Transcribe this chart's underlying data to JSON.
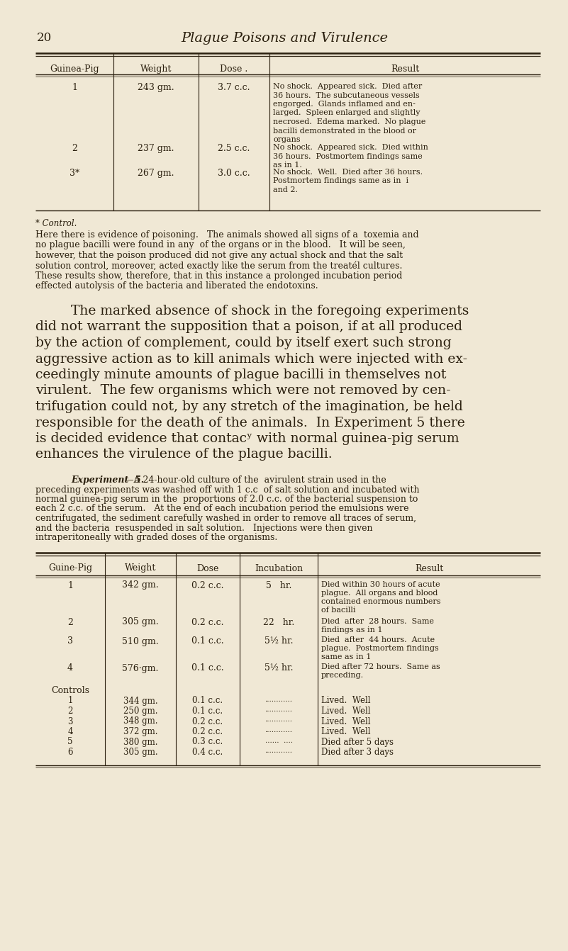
{
  "bg_color": "#f0e8d5",
  "text_color": "#2a1f0e",
  "page_number": "20",
  "page_title": "Plague Poisons and Virulence",
  "table1_headers": [
    "Guinea-Pig",
    "Weight",
    "Dose .",
    "Result"
  ],
  "table1_rows": [
    [
      "1",
      "243 gm.",
      "3.7 c.c.",
      "No shock.  Appeared sick.  Died after\n36 hours.  The subcutaneous vessels\nengorged.  Glands inflamed and en-\nlarged.  Spleen enlarged and slightly\nnecrosed.  Edema marked.  No plague\nbacilli demonstrated in the blood or\norgans"
    ],
    [
      "2",
      "237 gm.",
      "2.5 c.c.",
      "No shock.  Appeared sick.  Died within\n36 hours.  Postmortem findings same\nas in 1."
    ],
    [
      "3*",
      "267 gm.",
      "3.0 c.c.",
      "No shock.  Well.  Died after 36 hours.\nPostmortem findings same as in  i\nand 2."
    ]
  ],
  "table1_footnote": "* Control.",
  "body_text_small_lines": [
    "Here there is evidence of poisoning.   The animals showed all signs of a  toxemia and",
    "no plague bacilli were found in any  of the organs or in the blood.   It will be seen,",
    "however, that the poison produced did not give any actual shock and that the salt",
    "solution control, moreover, acted exactly like the serum from the treatél cultures.",
    "These results show, therefore, that in this instance a prolonged incubation period",
    "effected autolysis of the bacteria and liberated the endotoxins."
  ],
  "body_text_large_lines": [
    "The marked absence of shock in the foregoing experiments",
    "did not warrant the supposition that a poison, if at all produced",
    "by the action of complement, could by itself exert such strong",
    "aggressive action as to kill animals which were injected with ex-",
    "ceedingly minute amounts of plague bacilli in themselves not",
    "virulent.  The few organisms which were not removed by cen-",
    "trifugation could not, by any stretch of the imagination, be held",
    "responsible for the death of the animals.  In Experiment 5 there",
    "is decided evidence that contacʸ with normal guinea-pig serum",
    "enhances the virulence of the plague bacilli."
  ],
  "experiment5_intro_italic": "Experiment  5.",
  "experiment5_body_lines": [
    "—A 24-hour-old culture of the  avirulent strain used in the",
    "preceding experiments was washed off with 1 c.c  of salt solution and incubated with",
    "normal guinea-pig serum in the  proportions of 2.0 c.c. of the bacterial suspension to",
    "each 2 c.c. of the serum.   At the end of each incubation period the emulsions were",
    "centrifugated, the sediment carefully washed in order to remove all traces of serum,",
    "and the bacteria  resuspended in salt solution.   Injections were then given",
    "intraperitoneally with graded doses of the organisms."
  ],
  "table2_headers": [
    "Guine-Pig",
    "Weight",
    "Dose",
    "Incubation",
    "Result"
  ],
  "table2_rows": [
    [
      "1",
      "342 gm.",
      "0.2 c.c.",
      "5   hr.",
      "Died within 30 hours of acute\nplague.  All organs and blood\ncontained enormous numbers\nof bacilli"
    ],
    [
      "2",
      "305 gm.",
      "0.2 c.c.",
      "22   hr.",
      "Died  after  28 hours.  Same\nfindings as in 1"
    ],
    [
      "3",
      "510 gm.",
      "0.1 c.c.",
      "5½ hr.",
      "Died  after  44 hours.  Acute\nplague.  Postmortem findings\nsame as in 1"
    ],
    [
      "4",
      "576·gm.",
      "0.1 c.c.",
      "5½ hr.",
      "Died after 72 hours.  Same as\npreceding."
    ]
  ],
  "table2_controls_header": "Controls",
  "table2_controls": [
    [
      "1",
      "344 gm.",
      "0.1 c.c.",
      "............",
      "Lived.  Well"
    ],
    [
      "2",
      "250 gm.",
      "0.1 c.c.",
      "............",
      "Lived.  Well"
    ],
    [
      "3",
      "348 gm.",
      "0.2 c.c.",
      "............",
      "Lived.  Well"
    ],
    [
      "4",
      "372 gm.",
      "0.2 c.c.",
      "............",
      "Lived.  Well"
    ],
    [
      "5",
      "380 gm.",
      "0.3 c.c.",
      "......  ....",
      "Died after 5 days"
    ],
    [
      "6",
      "305 gm.",
      "0.4 c.c.",
      "............",
      "Died after 3 days"
    ]
  ]
}
